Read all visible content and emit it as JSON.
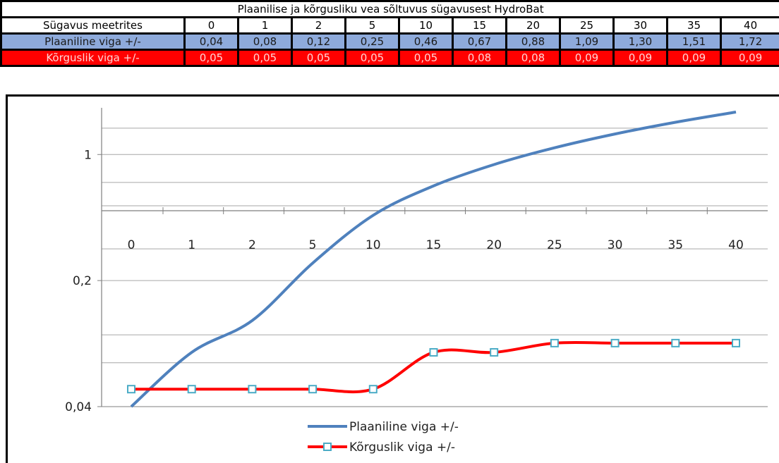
{
  "table": {
    "title": "Plaanilise ja kõrgusliku vea sõltuvus sügavusest HydroBat",
    "depth_label": "Sügavus meetrites",
    "depths": [
      "0",
      "1",
      "2",
      "5",
      "10",
      "15",
      "20",
      "25",
      "30",
      "35",
      "40"
    ],
    "plan_label": "Plaaniline viga +/-",
    "plan_values": [
      "0,04",
      "0,08",
      "0,12",
      "0,25",
      "0,46",
      "0,67",
      "0,88",
      "1,09",
      "1,30",
      "1,51",
      "1,72"
    ],
    "korg_label": "Kõrguslik  viga +/-",
    "korg_values": [
      "0,05",
      "0,05",
      "0,05",
      "0,05",
      "0,05",
      "0,08",
      "0,08",
      "0,09",
      "0,09",
      "0,09",
      "0,09"
    ]
  },
  "chart_data": {
    "type": "line",
    "categories": [
      "0",
      "1",
      "2",
      "5",
      "10",
      "15",
      "20",
      "25",
      "30",
      "35",
      "40"
    ],
    "y_scale": "log",
    "y_tick_labels": [
      "0,04",
      "0,2",
      "1"
    ],
    "y_ticks": [
      0.04,
      0.2,
      1
    ],
    "ylim": [
      0.04,
      1.72
    ],
    "grid": true,
    "legend_position": "bottom",
    "series": [
      {
        "name": "Plaaniline viga +/-",
        "values": [
          0.04,
          0.08,
          0.12,
          0.25,
          0.46,
          0.67,
          0.88,
          1.09,
          1.3,
          1.51,
          1.72
        ],
        "color": "#4f81bd",
        "marker": "none"
      },
      {
        "name": "Kõrguslik  viga +/-",
        "values": [
          0.05,
          0.05,
          0.05,
          0.05,
          0.05,
          0.08,
          0.08,
          0.09,
          0.09,
          0.09,
          0.09
        ],
        "color": "#ff0000",
        "marker": "square",
        "marker_color": "#4bacc6"
      }
    ]
  }
}
